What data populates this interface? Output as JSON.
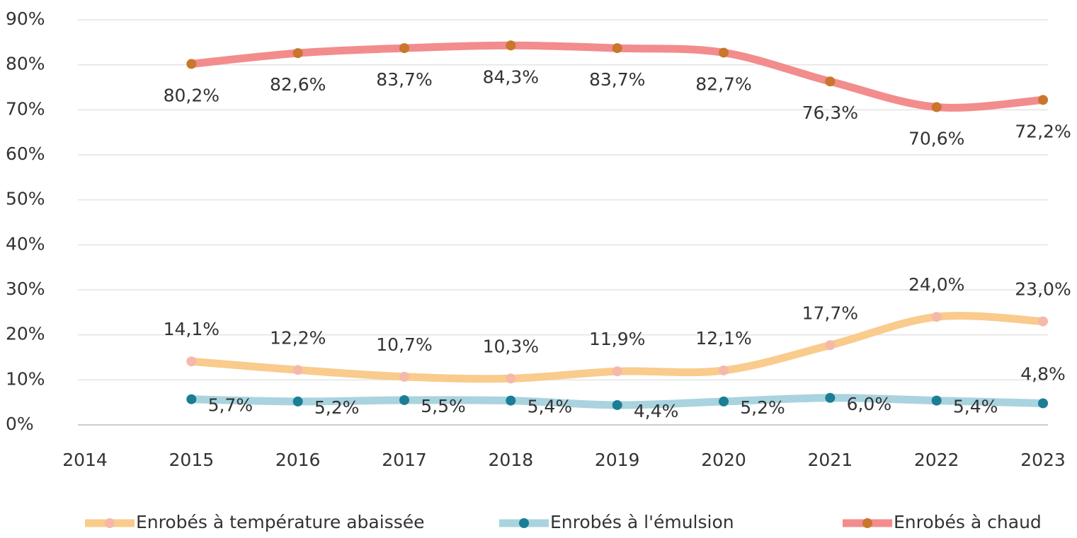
{
  "chart_data": {
    "type": "line",
    "x": [
      2015,
      2016,
      2017,
      2018,
      2019,
      2020,
      2021,
      2022,
      2023
    ],
    "series": [
      {
        "name": "Enrobés à température abaissée",
        "color": "#f9cb8c",
        "marker_color": "#f5b9ab",
        "values": [
          14.1,
          12.2,
          10.7,
          10.3,
          11.9,
          12.1,
          17.7,
          24.0,
          23.0
        ],
        "value_labels": [
          "14,1%",
          "12,2%",
          "10,7%",
          "10,3%",
          "11,9%",
          "12,1%",
          "17,7%",
          "24,0%",
          "23,0%"
        ]
      },
      {
        "name": "Enrobés à l'émulsion",
        "color": "#a9d3df",
        "marker_color": "#1b7e95",
        "values": [
          5.7,
          5.2,
          5.5,
          5.4,
          4.4,
          5.2,
          6.0,
          5.4,
          4.8
        ],
        "value_labels": [
          "5,7%",
          "5,2%",
          "5,5%",
          "5,4%",
          "4,4%",
          "5,2%",
          "6,0%",
          "5,4%",
          "4,8%"
        ]
      },
      {
        "name": "Enrobés à chaud",
        "color": "#f38c8c",
        "marker_color": "#c8772c",
        "values": [
          80.2,
          82.6,
          83.7,
          84.3,
          83.7,
          82.7,
          76.3,
          70.6,
          72.2
        ],
        "value_labels": [
          "80,2%",
          "82,6%",
          "83,7%",
          "84,3%",
          "83,7%",
          "82,7%",
          "76,3%",
          "70,6%",
          "72,2%"
        ]
      }
    ],
    "xlim": [
      2014,
      2023
    ],
    "xticks": [
      2014,
      2015,
      2016,
      2017,
      2018,
      2019,
      2020,
      2021,
      2022,
      2023
    ],
    "ylim": [
      0,
      90
    ],
    "yticks": [
      {
        "value": 0,
        "label": "0%"
      },
      {
        "value": 10,
        "label": "10%"
      },
      {
        "value": 20,
        "label": "20%"
      },
      {
        "value": 30,
        "label": "30%"
      },
      {
        "value": 40,
        "label": "40%"
      },
      {
        "value": 50,
        "label": "50%"
      },
      {
        "value": 60,
        "label": "60%"
      },
      {
        "value": 70,
        "label": "70%"
      },
      {
        "value": 80,
        "label": "80%"
      },
      {
        "value": 90,
        "label": "90%"
      }
    ],
    "grid": true,
    "legend": "bottom"
  }
}
